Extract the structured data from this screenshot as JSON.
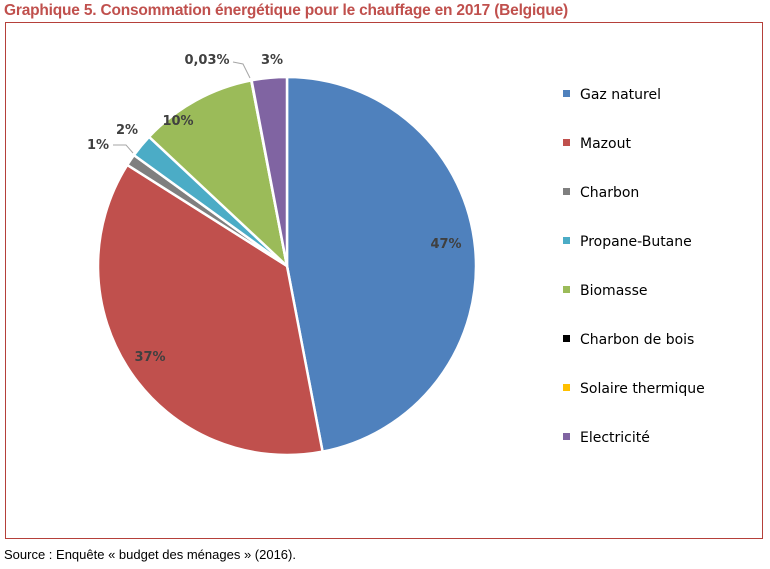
{
  "title": "Graphique 5. Consommation énergétique pour le chauffage en 2017 (Belgique)",
  "source": "Source : Enquête « budget des ménages » (2016).",
  "chart_data": {
    "type": "pie",
    "start": "top, clockwise",
    "legend_position": "right",
    "slices": [
      {
        "name": "Gaz naturel",
        "value": 47,
        "label": "47%",
        "color": "#4f81bd"
      },
      {
        "name": "Mazout",
        "value": 37,
        "label": "37%",
        "color": "#c0504d"
      },
      {
        "name": "Charbon",
        "value": 1,
        "label": "1%",
        "color": "#7f7f7f"
      },
      {
        "name": "Propane-Butane",
        "value": 2,
        "label": "2%",
        "color": "#4bacc6"
      },
      {
        "name": "Biomasse",
        "value": 10,
        "label": "10%",
        "color": "#9bbb59"
      },
      {
        "name": "Charbon de bois",
        "value": 0,
        "label": "",
        "color": "#000000"
      },
      {
        "name": "Solaire thermique",
        "value": 0.03,
        "label": "0,03%",
        "color": "#ffc000"
      },
      {
        "name": "Electricité",
        "value": 3,
        "label": "3%",
        "color": "#8064a2"
      }
    ]
  }
}
